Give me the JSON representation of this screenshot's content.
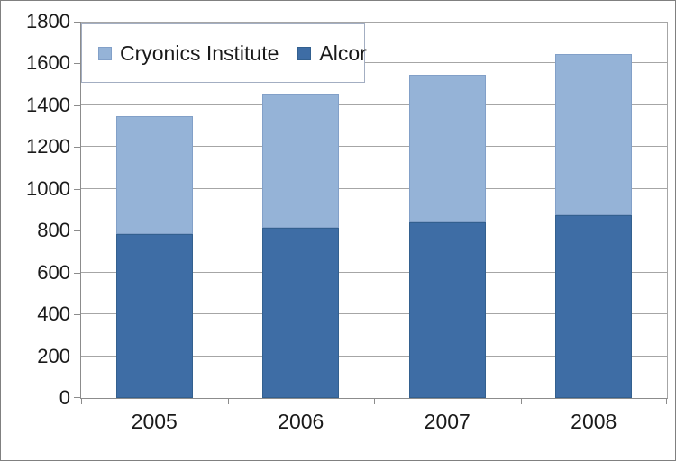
{
  "chart_data": {
    "type": "bar",
    "subtype": "stacked",
    "title": "",
    "xlabel": "",
    "ylabel": "",
    "categories": [
      "2005",
      "2006",
      "2007",
      "2008"
    ],
    "series": [
      {
        "name": "Alcor",
        "color": "#3E6DA5",
        "border_color": "#33608F",
        "values": [
          785,
          815,
          840,
          875
        ]
      },
      {
        "name": "Cryonics Institute",
        "color": "#95B3D7",
        "border_color": "#82A0C8",
        "values": [
          565,
          640,
          705,
          770
        ]
      }
    ],
    "totals": [
      1350,
      1455,
      1545,
      1645
    ],
    "ylim": [
      0,
      1800
    ],
    "ytick_step": 200,
    "yticks": [
      "0",
      "200",
      "400",
      "600",
      "800",
      "1000",
      "1200",
      "1400",
      "1600",
      "1800"
    ],
    "grid": true,
    "legend": {
      "position": "top-left-inside",
      "items": [
        {
          "label": "Cryonics Institute",
          "color": "#95B3D7",
          "border_color": "#82A0C8"
        },
        {
          "label": "Alcor",
          "color": "#3E6DA5",
          "border_color": "#33608F"
        }
      ]
    },
    "colors": {
      "background": "#FFFFFF",
      "gridline": "#A6A6A6",
      "axis": "#8C8C8C",
      "text": "#1A1A1A",
      "legend_border": "#A3AEC2",
      "frame_border": "#808080"
    }
  }
}
